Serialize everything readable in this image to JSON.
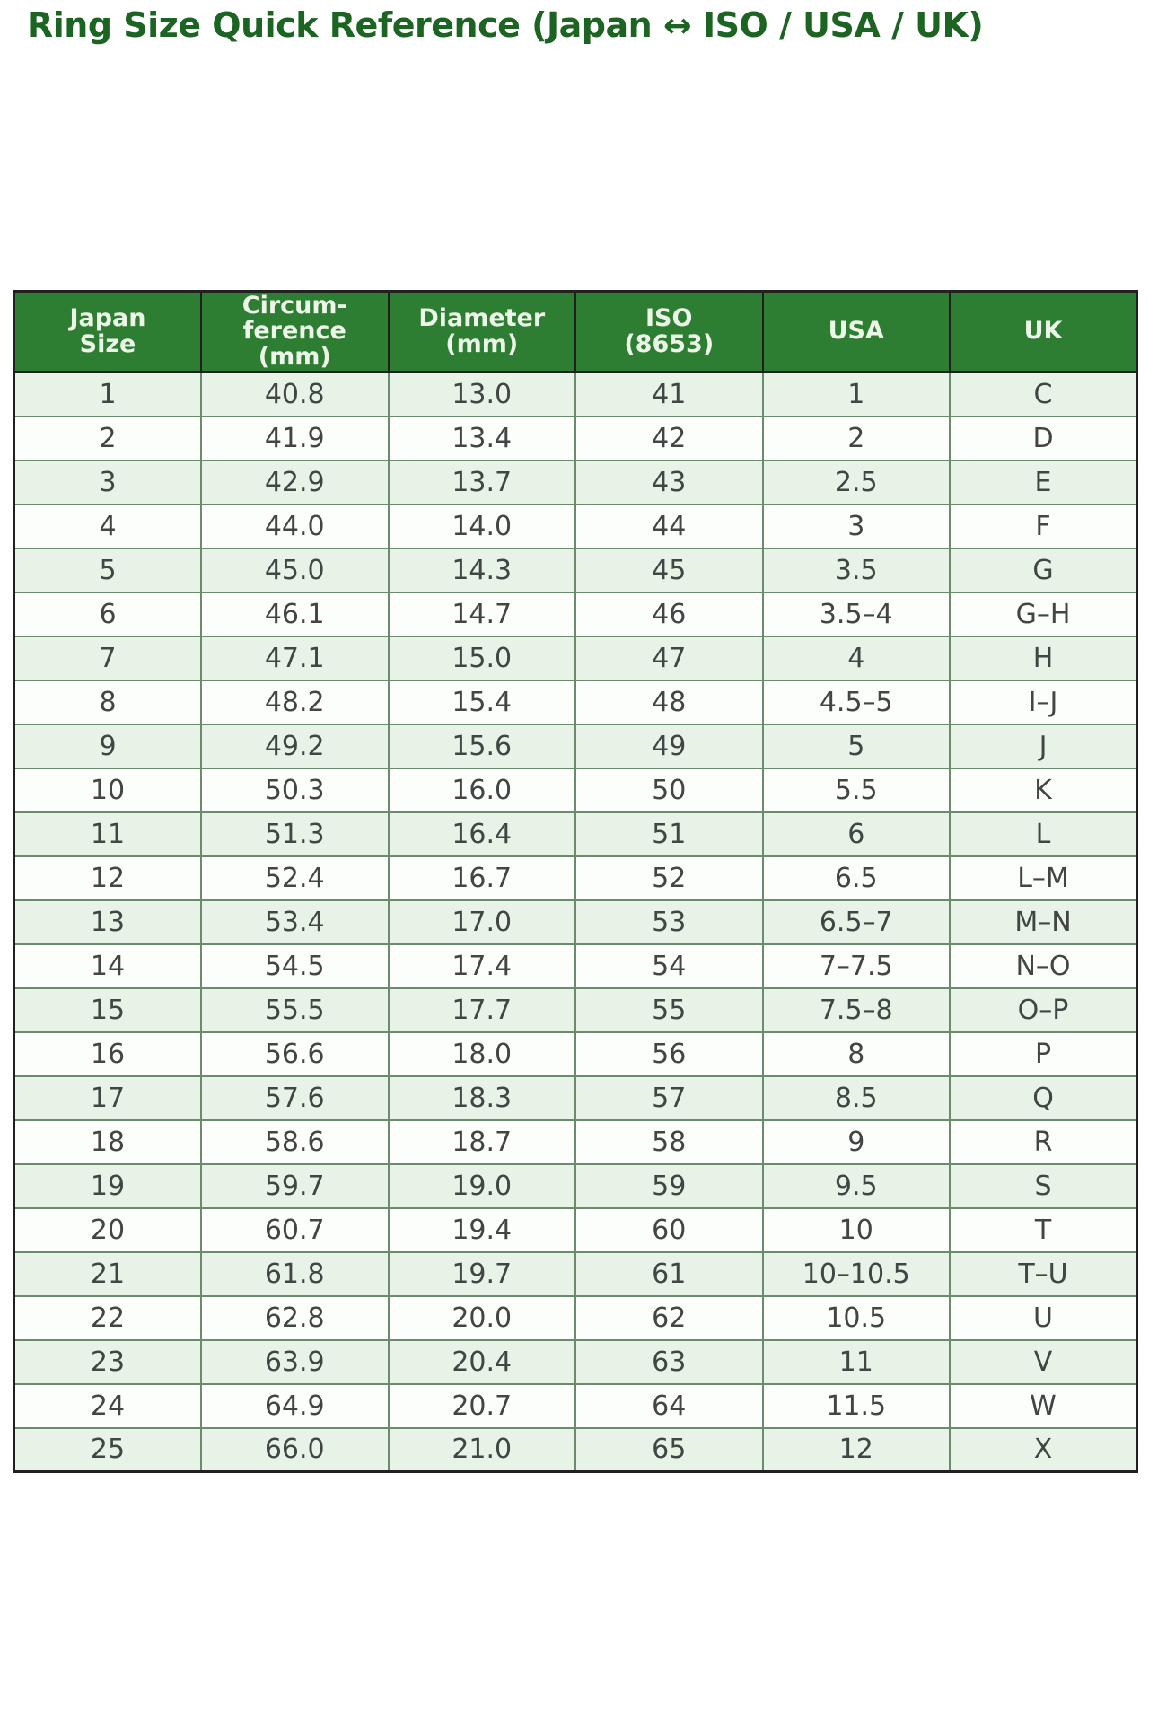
{
  "colors": {
    "title_green": "#1c6422",
    "header_bg": "#2d7d32",
    "header_text": "#edf5e8",
    "row_alt_bg": "#e6f3e6",
    "row_bg": "#fcfefc",
    "cell_text": "#414644",
    "grid_line": "#6b8a6e",
    "outer_border": "#202020",
    "page_bg": "#ffffff"
  },
  "chart_data": {
    "type": "table",
    "title": "Ring Size Quick Reference (Japan ↔ ISO / USA / UK)",
    "layout_hints": {
      "columns_equal_width": true,
      "header_style": "dark-green with light text",
      "row_striping": "odd rows light green, even rows white"
    },
    "columns": [
      {
        "id": "japan-size",
        "label": "Japan\nSize"
      },
      {
        "id": "circumference-mm",
        "label": "Circum-\nference\n(mm)"
      },
      {
        "id": "diameter-mm",
        "label": "Diameter\n(mm)"
      },
      {
        "id": "iso-8653",
        "label": "ISO\n(8653)"
      },
      {
        "id": "usa",
        "label": "USA"
      },
      {
        "id": "uk",
        "label": "UK"
      }
    ],
    "rows": [
      [
        "1",
        "40.8",
        "13.0",
        "41",
        "1",
        "C"
      ],
      [
        "2",
        "41.9",
        "13.4",
        "42",
        "2",
        "D"
      ],
      [
        "3",
        "42.9",
        "13.7",
        "43",
        "2.5",
        "E"
      ],
      [
        "4",
        "44.0",
        "14.0",
        "44",
        "3",
        "F"
      ],
      [
        "5",
        "45.0",
        "14.3",
        "45",
        "3.5",
        "G"
      ],
      [
        "6",
        "46.1",
        "14.7",
        "46",
        "3.5–4",
        "G–H"
      ],
      [
        "7",
        "47.1",
        "15.0",
        "47",
        "4",
        "H"
      ],
      [
        "8",
        "48.2",
        "15.4",
        "48",
        "4.5–5",
        "I–J"
      ],
      [
        "9",
        "49.2",
        "15.6",
        "49",
        "5",
        "J"
      ],
      [
        "10",
        "50.3",
        "16.0",
        "50",
        "5.5",
        "K"
      ],
      [
        "11",
        "51.3",
        "16.4",
        "51",
        "6",
        "L"
      ],
      [
        "12",
        "52.4",
        "16.7",
        "52",
        "6.5",
        "L–M"
      ],
      [
        "13",
        "53.4",
        "17.0",
        "53",
        "6.5–7",
        "M–N"
      ],
      [
        "14",
        "54.5",
        "17.4",
        "54",
        "7–7.5",
        "N–O"
      ],
      [
        "15",
        "55.5",
        "17.7",
        "55",
        "7.5–8",
        "O–P"
      ],
      [
        "16",
        "56.6",
        "18.0",
        "56",
        "8",
        "P"
      ],
      [
        "17",
        "57.6",
        "18.3",
        "57",
        "8.5",
        "Q"
      ],
      [
        "18",
        "58.6",
        "18.7",
        "58",
        "9",
        "R"
      ],
      [
        "19",
        "59.7",
        "19.0",
        "59",
        "9.5",
        "S"
      ],
      [
        "20",
        "60.7",
        "19.4",
        "60",
        "10",
        "T"
      ],
      [
        "21",
        "61.8",
        "19.7",
        "61",
        "10–10.5",
        "T–U"
      ],
      [
        "22",
        "62.8",
        "20.0",
        "62",
        "10.5",
        "U"
      ],
      [
        "23",
        "63.9",
        "20.4",
        "63",
        "11",
        "V"
      ],
      [
        "24",
        "64.9",
        "20.7",
        "64",
        "11.5",
        "W"
      ],
      [
        "25",
        "66.0",
        "21.0",
        "65",
        "12",
        "X"
      ]
    ]
  }
}
